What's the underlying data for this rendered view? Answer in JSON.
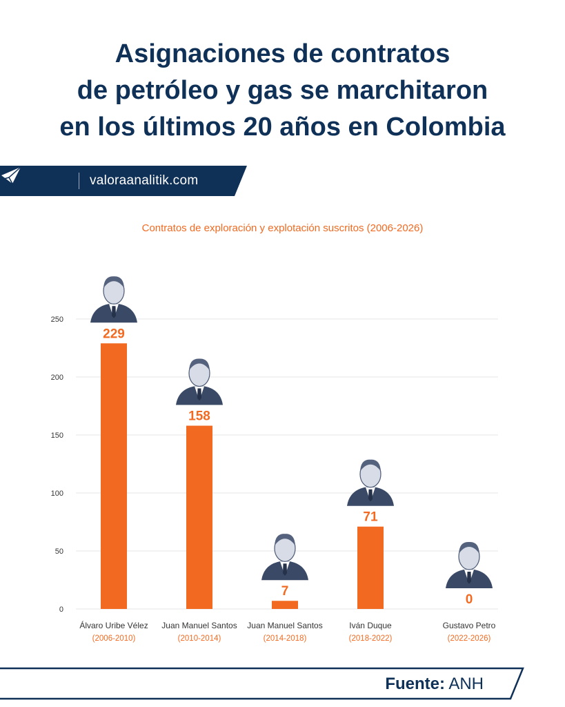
{
  "title": {
    "line1": "Asignaciones de contratos",
    "line2": "de petróleo y gas se marchitaron",
    "line3": "en los últimos 20 años en Colombia"
  },
  "brand": {
    "site": "valoraanalitik.com",
    "logo_icon": "paper-plane-icon"
  },
  "colors": {
    "navy": "#0f3057",
    "orange": "#f26a21",
    "grid": "#e6e6e6",
    "axis_text": "#333333"
  },
  "source": {
    "label": "Fuente:",
    "value": "ANH"
  },
  "chart_data": {
    "type": "bar",
    "title": "Contratos de exploración y explotación suscritos (2006-2026)",
    "categories": [
      "Álvaro Uribe Vélez",
      "Juan Manuel Santos",
      "Juan Manuel Santos",
      "Iván Duque",
      "Gustavo Petro"
    ],
    "periods": [
      "(2006-2010)",
      "(2010-2014)",
      "(2014-2018)",
      "(2018-2022)",
      "(2022-2026)"
    ],
    "values": [
      229,
      158,
      7,
      71,
      0
    ],
    "ylim": [
      0,
      250
    ],
    "yticks": [
      0,
      50,
      100,
      150,
      200,
      250
    ],
    "grid": true,
    "data_labels": true,
    "portraits": [
      "portrait-icon",
      "portrait-icon",
      "portrait-icon",
      "portrait-icon",
      "portrait-icon"
    ]
  }
}
